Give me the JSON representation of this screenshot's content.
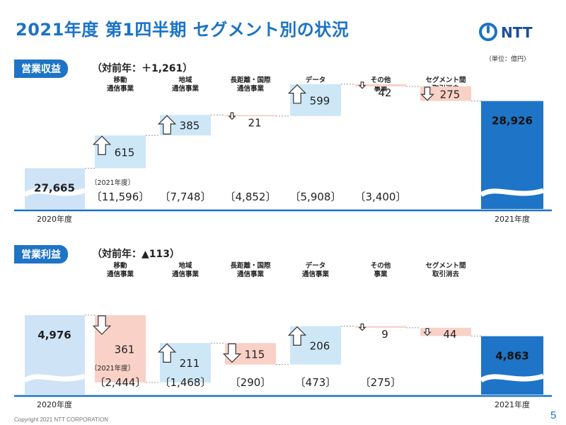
{
  "header": {
    "title": "2021年度 第1四半期 セグメント別の状況",
    "logo_text": "NTT",
    "unit": "（単位：億円）"
  },
  "footer": {
    "copyright": "Copyright 2021 NTT CORPORATION",
    "page": "5"
  },
  "colors": {
    "brand": "#1b73c6",
    "start_bar": "#cfe3f7",
    "end_bar": "#1e74c6",
    "increase": "#cde7f7",
    "decrease": "#f9d1c7"
  },
  "chart_data": [
    {
      "type": "bar",
      "label": "営業収益",
      "subtitle": "（対前年：＋1,261）",
      "categories": [
        "移動\n通信事業",
        "地域\n通信事業",
        "長距離・国際\n通信事業",
        "データ\n通信事業",
        "その他\n事業",
        "セグメント間\n取引消去"
      ],
      "start": {
        "label": "2020年度",
        "value": 27665,
        "value_text": "27,665"
      },
      "end": {
        "label": "2021年度",
        "value": 28926,
        "value_text": "28,926"
      },
      "changes": [
        615,
        385,
        -21,
        599,
        -42,
        -275
      ],
      "change_texts": [
        "615",
        "385",
        "21",
        "599",
        "42",
        "275"
      ],
      "segment_values": [
        "〔11,596〕",
        "〔7,748〕",
        "〔4,852〕",
        "〔5,908〕",
        "〔3,400〕"
      ],
      "segment_year_note": "〔2021年度〕"
    },
    {
      "type": "bar",
      "label": "営業利益",
      "subtitle": "（対前年：▲113）",
      "categories": [
        "移動\n通信事業",
        "地域\n通信事業",
        "長距離・国際\n通信事業",
        "データ\n通信事業",
        "その他\n事業",
        "セグメント間\n取引消去"
      ],
      "start": {
        "label": "2020年度",
        "value": 4976,
        "value_text": "4,976"
      },
      "end": {
        "label": "2021年度",
        "value": 4863,
        "value_text": "4,863"
      },
      "changes": [
        -361,
        211,
        -115,
        206,
        -9,
        -44
      ],
      "change_texts": [
        "361",
        "211",
        "115",
        "206",
        "9",
        "44"
      ],
      "segment_values": [
        "〔2,444〕",
        "〔1,468〕",
        "〔290〕",
        "〔473〕",
        "〔275〕"
      ],
      "segment_year_note": "〔2021年度〕"
    }
  ]
}
